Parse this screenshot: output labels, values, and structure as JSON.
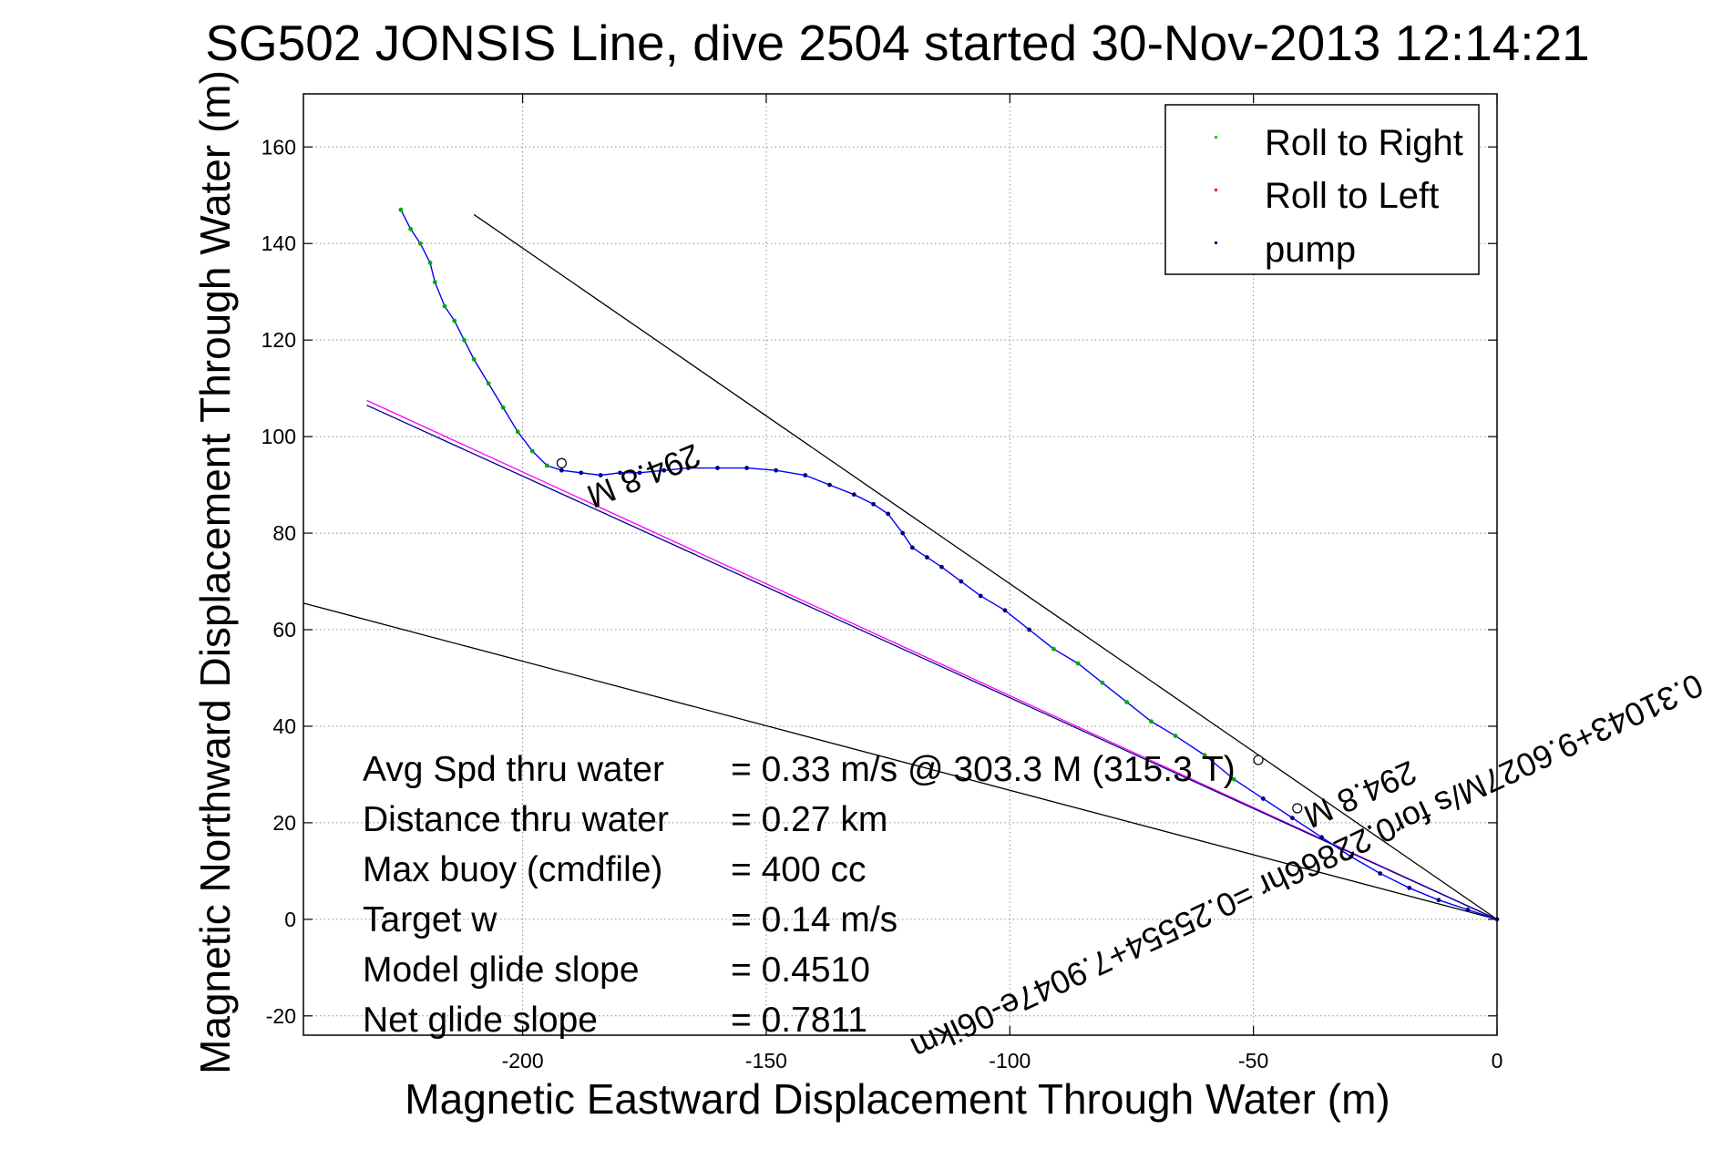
{
  "chart_data": {
    "type": "line",
    "title": "SG502 JONSIS Line, dive 2504 started 30-Nov-2013 12:14:21",
    "xlabel": "Magnetic Eastward Displacement Through Water (m)",
    "ylabel": "Magnetic Northward Displacement Through Water (m)",
    "xlim": [
      -245,
      0
    ],
    "ylim": [
      -24,
      171
    ],
    "xticks": [
      -200,
      -150,
      -100,
      -50,
      0
    ],
    "yticks": [
      -20,
      0,
      20,
      40,
      60,
      80,
      100,
      120,
      140,
      160
    ],
    "grid": true,
    "legend_position": "top-right",
    "legend": [
      {
        "label": "Roll to Right",
        "color": "#00cc00"
      },
      {
        "label": "Roll to Left",
        "color": "#ff0000"
      },
      {
        "label": "pump",
        "color": "#000080"
      }
    ],
    "series": [
      {
        "type": "line",
        "color": "#0000ff",
        "x": [
          -225,
          -223,
          -221,
          -219,
          -218,
          -216,
          -214,
          -212,
          -210,
          -207,
          -204,
          -201,
          -198,
          -195,
          -192,
          -188,
          -184,
          -180,
          -176,
          -171,
          -166,
          -160,
          -154,
          -148,
          -142,
          -137,
          -132,
          -128,
          -125,
          -122,
          -120,
          -117,
          -114,
          -110,
          -106,
          -101,
          -96,
          -91,
          -86,
          -81,
          -76,
          -71,
          -66,
          -60,
          -54,
          -48,
          -42,
          -36,
          -30,
          -24,
          -18,
          -12,
          -6,
          0
        ],
        "y": [
          147,
          143,
          140,
          136,
          132,
          127,
          124,
          120,
          116,
          111,
          106,
          101,
          97,
          94,
          93,
          92.5,
          92,
          92.5,
          92.5,
          93,
          93.5,
          93.5,
          93.5,
          93,
          92,
          90,
          88,
          86,
          84,
          80,
          77,
          75,
          73,
          70,
          67,
          64,
          60,
          56,
          53,
          49,
          45,
          41,
          38,
          34,
          29,
          25,
          21,
          17,
          13,
          9.5,
          6.5,
          4,
          2,
          0
        ]
      }
    ],
    "reference_lines": [
      {
        "color": "#000000",
        "x": [
          -210,
          0
        ],
        "y": [
          146,
          0
        ]
      },
      {
        "color": "#000000",
        "x": [
          -245,
          0
        ],
        "y": [
          65.5,
          0
        ]
      },
      {
        "color": "#ff00ff",
        "x": [
          -232,
          0
        ],
        "y": [
          107.5,
          0
        ]
      },
      {
        "color": "#000080",
        "x": [
          -232,
          0
        ],
        "y": [
          106.5,
          0
        ]
      }
    ],
    "annotations": [
      {
        "text": "294.8 M",
        "x": -176,
        "y": 94,
        "angle": 158
      },
      {
        "text": "0.31043+9.6027M/s for0.22866hr =0.25554+7.9047e-06ikm",
        "x": -40,
        "y": 13,
        "angle": 155
      },
      {
        "text": "294.8 M",
        "x": -29,
        "y": 28,
        "angle": 156
      }
    ],
    "markers": [
      {
        "shape": "circle",
        "x": -192,
        "y": 94.5
      },
      {
        "shape": "circle",
        "x": -49,
        "y": 33
      },
      {
        "shape": "circle",
        "x": -41,
        "y": 23
      }
    ]
  },
  "stats": [
    {
      "label": "Avg Spd thru water",
      "value": "=  0.33 m/s @ 303.3  M (315.3  T)"
    },
    {
      "label": "Distance thru water",
      "value": "=  0.27 km"
    },
    {
      "label": "Max buoy (cmdfile)",
      "value": "= 400 cc"
    },
    {
      "label": "Target w",
      "value": "= 0.14 m/s"
    },
    {
      "label": "Model glide slope",
      "value": "= 0.4510"
    },
    {
      "label": "Net glide slope",
      "value": "= 0.7811"
    }
  ]
}
